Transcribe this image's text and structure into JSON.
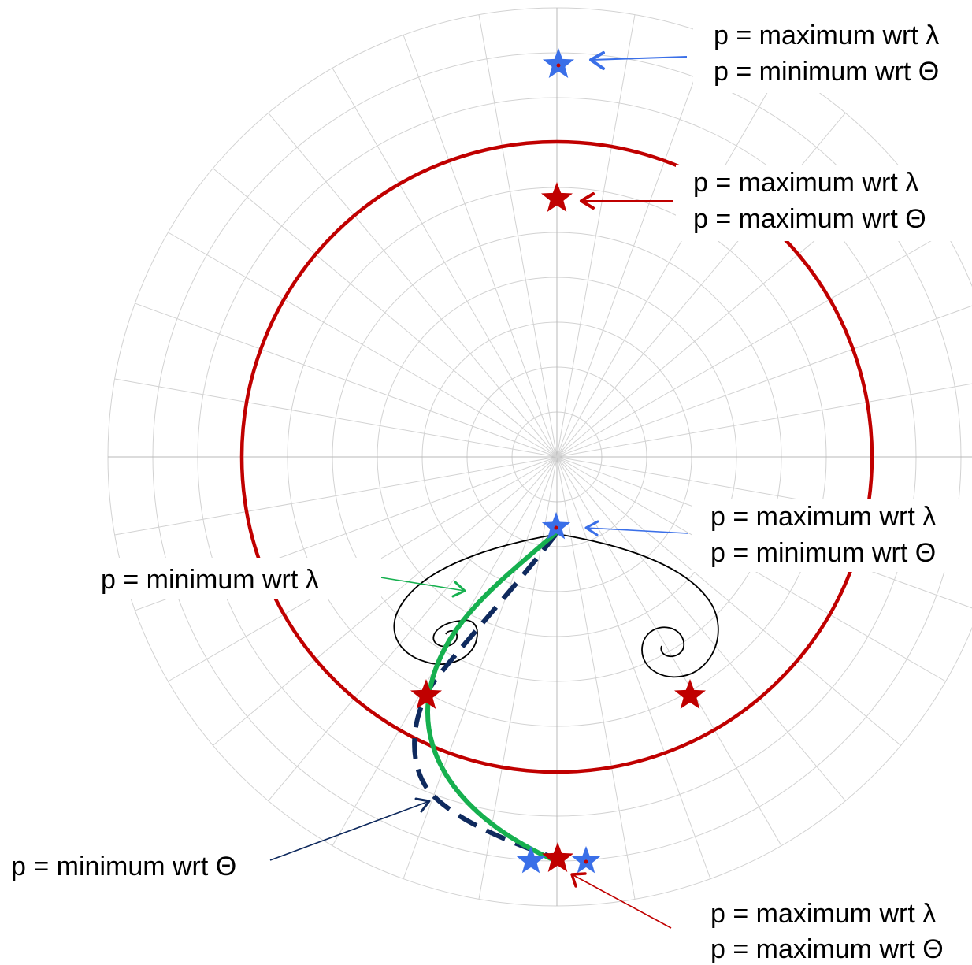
{
  "annotations": {
    "top_blue_star": {
      "line1": "p = maximum wrt λ",
      "line2": "p = minimum wrt Θ"
    },
    "top_red_star": {
      "line1": "p = maximum wrt λ",
      "line2": "p = maximum wrt Θ"
    },
    "center_blue_star": {
      "line1": "p = maximum wrt λ",
      "line2": "p = minimum wrt Θ"
    },
    "green_path": {
      "text": "p = minimum wrt λ"
    },
    "dashed_path": {
      "text": "p = minimum wrt Θ"
    },
    "bottom_red_star": {
      "line1": "p = maximum wrt λ",
      "line2": "p = maximum wrt Θ"
    }
  },
  "colors": {
    "grid": "#d2d2d2",
    "red_circle": "#c00000",
    "red_star": "#c00000",
    "blue_star": "#3a6fe8",
    "green_path": "#16b04f",
    "dashed_path": "#0f2a5e",
    "black_curve": "#000000",
    "arrow_blue": "#3a6fe8",
    "arrow_red": "#c00000",
    "arrow_green": "#16b04f",
    "arrow_navy": "#0f2a5e"
  }
}
